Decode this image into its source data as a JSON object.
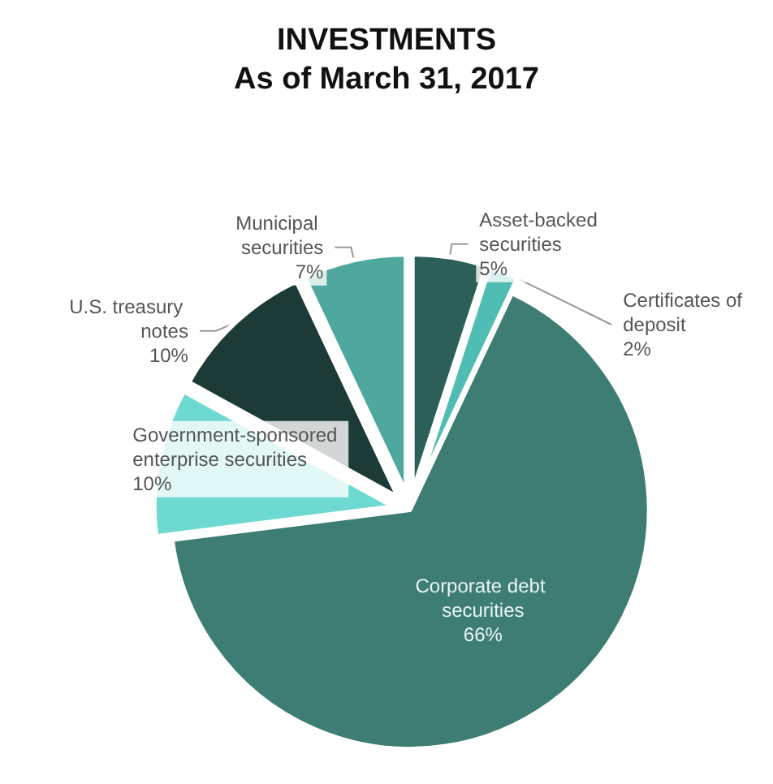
{
  "chart_data": {
    "type": "pie",
    "title": "INVESTMENTS\nAs of March 31, 2017",
    "categories": [
      "Asset-backed securities",
      "Certificates of deposit",
      "Corporate debt securities",
      "Government-sponsored enterprise securities",
      "U.S. treasury notes",
      "Municipal securities"
    ],
    "values": [
      5,
      2,
      66,
      10,
      10,
      7
    ],
    "colors": [
      "#2d5f59",
      "#4fbdb3",
      "#3d7d74",
      "#6dd9d0",
      "#1c3b37",
      "#4fa89e"
    ],
    "value_labels": [
      "5%",
      "2%",
      "66%",
      "10%",
      "10%",
      "7%"
    ],
    "legend": false
  }
}
